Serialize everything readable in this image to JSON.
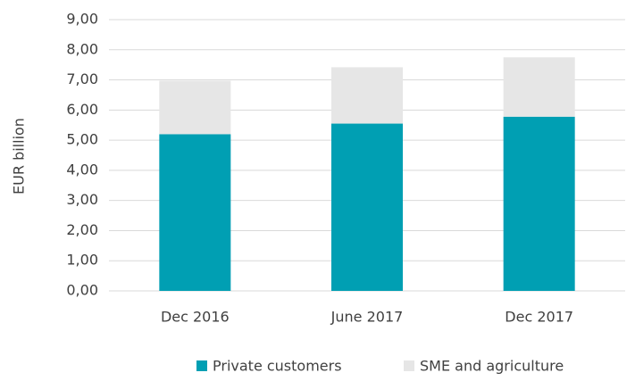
{
  "chart_data": {
    "type": "stacked_bar",
    "y_label": "EUR billion",
    "categories": [
      "Dec 2016",
      "June 2017",
      "Dec 2017"
    ],
    "series": [
      {
        "name": "Private customers",
        "color": "#009fb3",
        "values": [
          5.2,
          5.55,
          5.78
        ]
      },
      {
        "name": "SME and agriculture",
        "color": "#e6e6e6",
        "values": [
          1.77,
          1.87,
          1.97
        ]
      }
    ],
    "ylim": [
      0,
      9
    ],
    "yticks": [
      {
        "value": 0,
        "label": "0,00"
      },
      {
        "value": 1,
        "label": "1,00"
      },
      {
        "value": 2,
        "label": "2,00"
      },
      {
        "value": 3,
        "label": "3,00"
      },
      {
        "value": 4,
        "label": "4,00"
      },
      {
        "value": 5,
        "label": "5,00"
      },
      {
        "value": 6,
        "label": "6,00"
      },
      {
        "value": 7,
        "label": "7,00"
      },
      {
        "value": 8,
        "label": "8,00"
      },
      {
        "value": 9,
        "label": "9,00"
      }
    ],
    "grid": true,
    "legend": "bottom"
  }
}
